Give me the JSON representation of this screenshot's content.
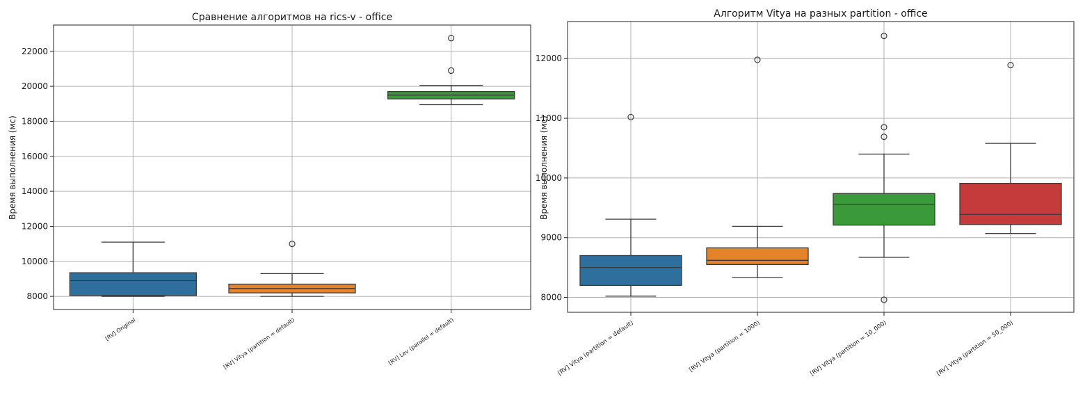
{
  "chart_data": [
    {
      "type": "box",
      "title": "Сравнение алгоритмов на rics-v - office",
      "xlabel": "",
      "ylabel": "Время выполнения (мс)",
      "ylim": [
        7250,
        23500
      ],
      "yticks": [
        8000,
        10000,
        12000,
        14000,
        16000,
        18000,
        20000,
        22000
      ],
      "grid": true,
      "series": [
        {
          "name": "[RV] Original",
          "color": "#2e6f9e",
          "min": 8000,
          "q1": 8050,
          "median": 8900,
          "q3": 9350,
          "max": 11100,
          "outliers": []
        },
        {
          "name": "[RV] Vitya (partition = default)",
          "color": "#e5832a",
          "min": 8000,
          "q1": 8200,
          "median": 8450,
          "q3": 8700,
          "max": 9300,
          "outliers": [
            11000
          ]
        },
        {
          "name": "[RV] Lev (parallel = default)",
          "color": "#3a9a3a",
          "min": 18950,
          "q1": 19280,
          "median": 19500,
          "q3": 19700,
          "max": 20050,
          "outliers": [
            20900,
            22750
          ]
        }
      ]
    },
    {
      "type": "box",
      "title": "Алгоритм Vitya на разных partition - office",
      "xlabel": "",
      "ylabel": "Время выполнения (мс)",
      "ylim": [
        7750,
        12620
      ],
      "yticks": [
        8000,
        9000,
        10000,
        11000,
        12000
      ],
      "grid": true,
      "series": [
        {
          "name": "[RV] Vitya (partition = default)",
          "color": "#2e6f9e",
          "min": 8020,
          "q1": 8200,
          "median": 8500,
          "q3": 8700,
          "max": 9310,
          "outliers": [
            11020
          ]
        },
        {
          "name": "[RV] Vitya (partition = 1000)",
          "color": "#e5832a",
          "min": 8330,
          "q1": 8550,
          "median": 8620,
          "q3": 8830,
          "max": 9190,
          "outliers": [
            11980
          ]
        },
        {
          "name": "[RV] Vitya (partition = 10_000)",
          "color": "#3a9a3a",
          "min": 8670,
          "q1": 9210,
          "median": 9560,
          "q3": 9740,
          "max": 10400,
          "outliers": [
            7960,
            10690,
            10850,
            12380
          ]
        },
        {
          "name": "[RV] Vitya (partition = 50_000)",
          "color": "#c53a3a",
          "min": 9070,
          "q1": 9220,
          "median": 9390,
          "q3": 9910,
          "max": 10580,
          "outliers": [
            11890
          ]
        }
      ]
    }
  ]
}
